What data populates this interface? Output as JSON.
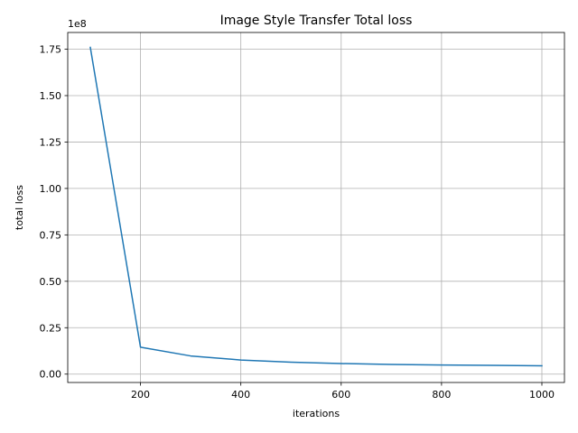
{
  "chart_data": {
    "type": "line",
    "title": "Image Style Transfer Total loss",
    "xlabel": "iterations",
    "ylabel": "total loss",
    "y_multiplier_label": "1e8",
    "xlim": [
      55,
      1045
    ],
    "ylim": [
      -0.045,
      1.84
    ],
    "x_ticks": [
      200,
      400,
      600,
      800,
      1000
    ],
    "x_tick_labels": [
      "200",
      "400",
      "600",
      "800",
      "1000"
    ],
    "y_ticks": [
      0.0,
      0.25,
      0.5,
      0.75,
      1.0,
      1.25,
      1.5,
      1.75
    ],
    "y_tick_labels": [
      "0.00",
      "0.25",
      "0.50",
      "0.75",
      "1.00",
      "1.25",
      "1.50",
      "1.75"
    ],
    "grid": true,
    "series": [
      {
        "color": "#1f77b4",
        "x": [
          100,
          200,
          300,
          400,
          500,
          600,
          700,
          800,
          900,
          1000
        ],
        "y": [
          1.76,
          0.145,
          0.098,
          0.076,
          0.064,
          0.057,
          0.052,
          0.049,
          0.047,
          0.045
        ]
      }
    ]
  }
}
